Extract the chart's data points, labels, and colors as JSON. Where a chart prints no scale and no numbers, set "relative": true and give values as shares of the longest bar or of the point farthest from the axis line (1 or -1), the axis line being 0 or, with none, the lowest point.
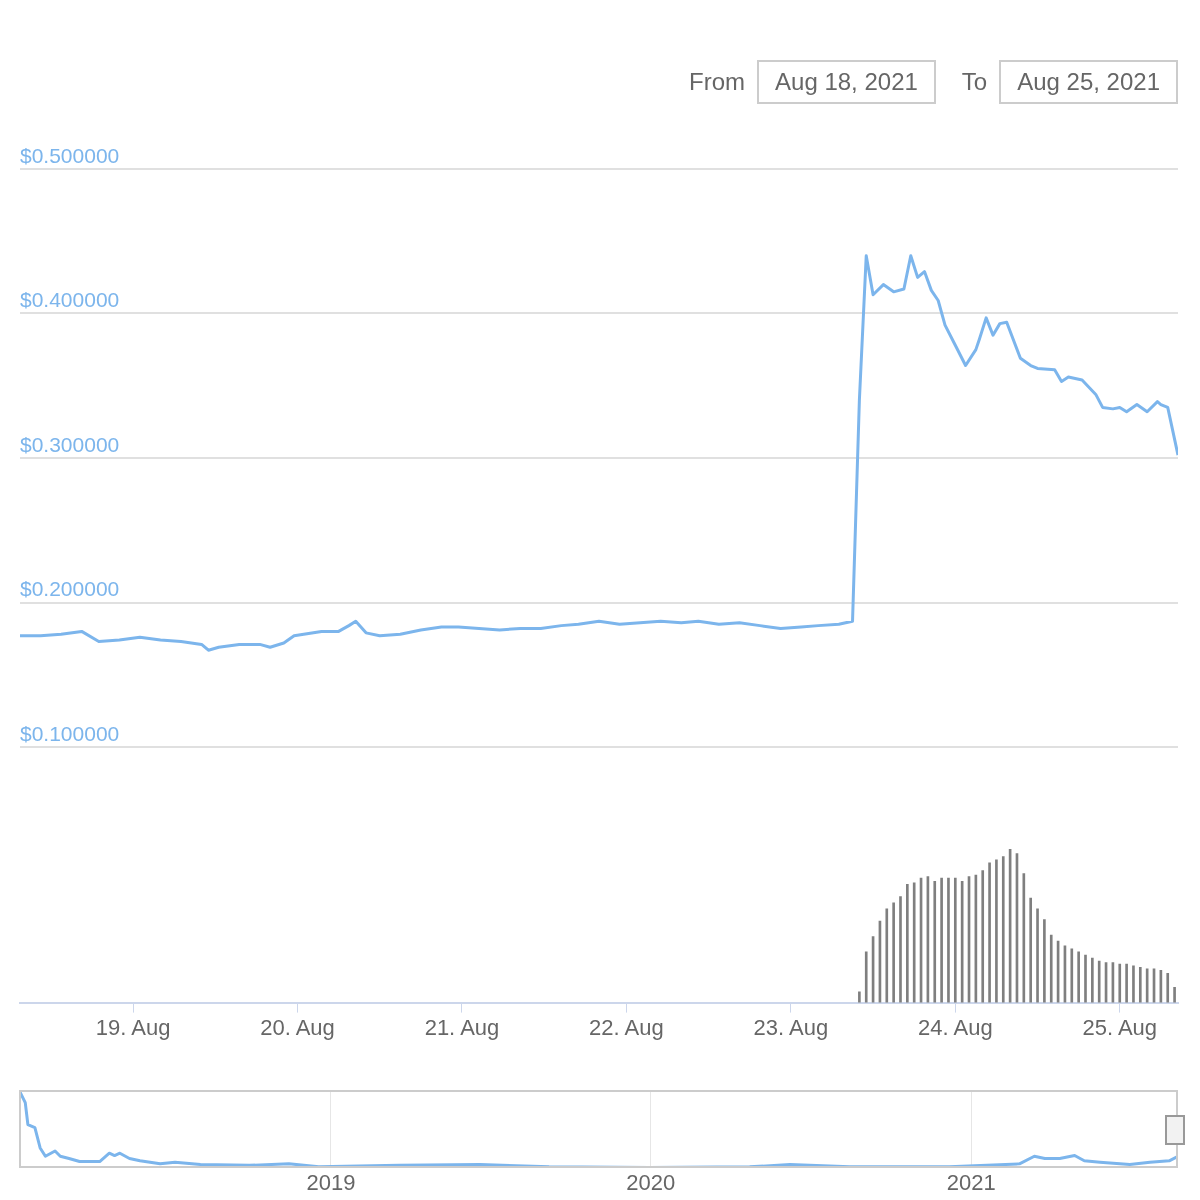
{
  "chart_data": [
    {
      "type": "line",
      "color": "#7cb5ec",
      "grid": "y",
      "tick_labels": "y",
      "annotations": [
        "From",
        "Aug 18, 2021",
        "To",
        "Aug 25, 2021"
      ],
      "xlim": [
        "2021-08-18T07:30",
        "2021-08-25T08:30"
      ],
      "ylim": [
        0.1,
        0.5
      ],
      "yticks": [
        {
          "value": 0.1,
          "label": "$0.100000"
        },
        {
          "value": 0.2,
          "label": "$0.200000"
        },
        {
          "value": 0.3,
          "label": "$0.300000"
        },
        {
          "value": 0.4,
          "label": "$0.400000"
        },
        {
          "value": 0.5,
          "label": "$0.500000"
        }
      ],
      "x": [
        "2021-08-18T07:30",
        "2021-08-18T10:30",
        "2021-08-18T13:30",
        "2021-08-18T16:30",
        "2021-08-18T19:00",
        "2021-08-18T22:00",
        "2021-08-19T01:00",
        "2021-08-19T04:00",
        "2021-08-19T07:00",
        "2021-08-19T10:00",
        "2021-08-19T11:00",
        "2021-08-19T12:30",
        "2021-08-19T15:30",
        "2021-08-19T18:30",
        "2021-08-19T20:00",
        "2021-08-19T22:00",
        "2021-08-19T23:30",
        "2021-08-20T03:30",
        "2021-08-20T06:00",
        "2021-08-20T07:30",
        "2021-08-20T08:30",
        "2021-08-20T10:00",
        "2021-08-20T12:00",
        "2021-08-20T15:00",
        "2021-08-20T18:00",
        "2021-08-20T21:00",
        "2021-08-20T23:30",
        "2021-08-21T02:30",
        "2021-08-21T05:30",
        "2021-08-21T08:30",
        "2021-08-21T11:30",
        "2021-08-21T14:30",
        "2021-08-21T17:00",
        "2021-08-21T20:00",
        "2021-08-21T23:00",
        "2021-08-22T02:00",
        "2021-08-22T05:00",
        "2021-08-22T08:00",
        "2021-08-22T10:30",
        "2021-08-22T13:30",
        "2021-08-22T16:30",
        "2021-08-22T19:30",
        "2021-08-22T22:30",
        "2021-08-23T01:30",
        "2021-08-23T04:00",
        "2021-08-23T07:00",
        "2021-08-23T09:00",
        "2021-08-23T10:00",
        "2021-08-23T11:00",
        "2021-08-23T12:00",
        "2021-08-23T13:30",
        "2021-08-23T15:00",
        "2021-08-23T16:30",
        "2021-08-23T17:30",
        "2021-08-23T18:30",
        "2021-08-23T19:30",
        "2021-08-23T20:30",
        "2021-08-23T21:30",
        "2021-08-23T22:30",
        "2021-08-24T00:00",
        "2021-08-24T01:30",
        "2021-08-24T03:00",
        "2021-08-24T03:30",
        "2021-08-24T04:30",
        "2021-08-24T05:30",
        "2021-08-24T06:30",
        "2021-08-24T07:30",
        "2021-08-24T09:30",
        "2021-08-24T11:00",
        "2021-08-24T12:00",
        "2021-08-24T14:30",
        "2021-08-24T15:30",
        "2021-08-24T16:30",
        "2021-08-24T18:30",
        "2021-08-24T20:30",
        "2021-08-24T21:30",
        "2021-08-24T23:00",
        "2021-08-25T00:00",
        "2021-08-25T01:00",
        "2021-08-25T02:30",
        "2021-08-25T04:00",
        "2021-08-25T05:30",
        "2021-08-25T06:00",
        "2021-08-25T07:00",
        "2021-08-25T08:30"
      ],
      "values": [
        0.177,
        0.177,
        0.178,
        0.18,
        0.173,
        0.174,
        0.176,
        0.174,
        0.173,
        0.171,
        0.167,
        0.169,
        0.171,
        0.171,
        0.169,
        0.172,
        0.177,
        0.18,
        0.18,
        0.184,
        0.187,
        0.179,
        0.177,
        0.178,
        0.181,
        0.183,
        0.183,
        0.182,
        0.181,
        0.182,
        0.182,
        0.184,
        0.185,
        0.187,
        0.185,
        0.186,
        0.187,
        0.186,
        0.187,
        0.185,
        0.186,
        0.184,
        0.182,
        0.183,
        0.184,
        0.185,
        0.187,
        0.34,
        0.44,
        0.413,
        0.42,
        0.415,
        0.417,
        0.44,
        0.425,
        0.429,
        0.416,
        0.409,
        0.392,
        0.378,
        0.364,
        0.375,
        0.382,
        0.397,
        0.385,
        0.393,
        0.394,
        0.369,
        0.364,
        0.362,
        0.361,
        0.353,
        0.356,
        0.354,
        0.344,
        0.335,
        0.334,
        0.335,
        0.332,
        0.337,
        0.332,
        0.339,
        0.337,
        0.335,
        0.302
      ]
    },
    {
      "type": "bar",
      "relative": true,
      "color": "#7f7f7f",
      "tick_labels": "x",
      "xlim": [
        "2021-08-18T07:30",
        "2021-08-25T08:30"
      ],
      "xticks": [
        {
          "value": "2021-08-19",
          "label": "19. Aug"
        },
        {
          "value": "2021-08-20",
          "label": "20. Aug"
        },
        {
          "value": "2021-08-21",
          "label": "21. Aug"
        },
        {
          "value": "2021-08-22",
          "label": "22. Aug"
        },
        {
          "value": "2021-08-23",
          "label": "23. Aug"
        },
        {
          "value": "2021-08-24",
          "label": "24. Aug"
        },
        {
          "value": "2021-08-25",
          "label": "25. Aug"
        }
      ],
      "x": [
        "2021-08-23T10:00",
        "2021-08-23T11:00",
        "2021-08-23T12:00",
        "2021-08-23T13:00",
        "2021-08-23T14:00",
        "2021-08-23T15:00",
        "2021-08-23T16:00",
        "2021-08-23T17:00",
        "2021-08-23T18:00",
        "2021-08-23T19:00",
        "2021-08-23T20:00",
        "2021-08-23T21:00",
        "2021-08-23T22:00",
        "2021-08-23T23:00",
        "2021-08-24T00:00",
        "2021-08-24T01:00",
        "2021-08-24T02:00",
        "2021-08-24T03:00",
        "2021-08-24T04:00",
        "2021-08-24T05:00",
        "2021-08-24T06:00",
        "2021-08-24T07:00",
        "2021-08-24T08:00",
        "2021-08-24T09:00",
        "2021-08-24T10:00",
        "2021-08-24T11:00",
        "2021-08-24T12:00",
        "2021-08-24T13:00",
        "2021-08-24T14:00",
        "2021-08-24T15:00",
        "2021-08-24T16:00",
        "2021-08-24T17:00",
        "2021-08-24T18:00",
        "2021-08-24T19:00",
        "2021-08-24T20:00",
        "2021-08-24T21:00",
        "2021-08-24T22:00",
        "2021-08-24T23:00",
        "2021-08-25T00:00",
        "2021-08-25T01:00",
        "2021-08-25T02:00",
        "2021-08-25T03:00",
        "2021-08-25T04:00",
        "2021-08-25T05:00",
        "2021-08-25T06:00",
        "2021-08-25T07:00",
        "2021-08-25T08:00"
      ],
      "values": [
        0.07,
        0.33,
        0.43,
        0.53,
        0.61,
        0.65,
        0.69,
        0.77,
        0.78,
        0.81,
        0.82,
        0.79,
        0.81,
        0.81,
        0.81,
        0.79,
        0.82,
        0.83,
        0.86,
        0.91,
        0.93,
        0.95,
        1.0,
        0.97,
        0.84,
        0.68,
        0.61,
        0.54,
        0.44,
        0.4,
        0.37,
        0.35,
        0.33,
        0.31,
        0.29,
        0.27,
        0.26,
        0.26,
        0.25,
        0.25,
        0.24,
        0.23,
        0.22,
        0.22,
        0.21,
        0.19,
        0.1
      ]
    },
    {
      "type": "line",
      "relative": true,
      "color": "#7cb5ec",
      "grid": "x",
      "tick_labels": "x",
      "xlim": [
        "2018-01-11",
        "2021-08-25"
      ],
      "xticks": [
        {
          "value": "2019-01-01",
          "label": "2019"
        },
        {
          "value": "2020-01-01",
          "label": "2020"
        },
        {
          "value": "2021-01-01",
          "label": "2021"
        }
      ],
      "x": [
        "2018-01-11",
        "2018-01-17",
        "2018-01-20",
        "2018-01-28",
        "2018-02-03",
        "2018-02-09",
        "2018-02-20",
        "2018-02-26",
        "2018-03-08",
        "2018-03-20",
        "2018-04-12",
        "2018-04-23",
        "2018-04-29",
        "2018-05-05",
        "2018-05-16",
        "2018-05-28",
        "2018-06-20",
        "2018-07-07",
        "2018-08-05",
        "2018-09-30",
        "2018-11-14",
        "2018-12-18",
        "2019-03-20",
        "2019-06-20",
        "2019-09-07",
        "2019-12-31",
        "2020-04-23",
        "2020-06-08",
        "2020-08-15",
        "2020-12-07",
        "2021-02-25",
        "2021-03-14",
        "2021-03-26",
        "2021-04-12",
        "2021-04-29",
        "2021-05-10",
        "2021-05-28",
        "2021-07-01",
        "2021-07-24",
        "2021-08-15",
        "2021-08-25"
      ],
      "values": [
        1,
        0.86,
        0.57,
        0.53,
        0.26,
        0.15,
        0.22,
        0.15,
        0.12,
        0.08,
        0.08,
        0.19,
        0.16,
        0.19,
        0.12,
        0.09,
        0.05,
        0.07,
        0.04,
        0.03,
        0.05,
        0.01,
        0.03,
        0.04,
        0.01,
        0,
        0.01,
        0.04,
        0.01,
        0.01,
        0.05,
        0.15,
        0.12,
        0.12,
        0.16,
        0.09,
        0.07,
        0.04,
        0.07,
        0.09,
        0.15
      ]
    }
  ]
}
